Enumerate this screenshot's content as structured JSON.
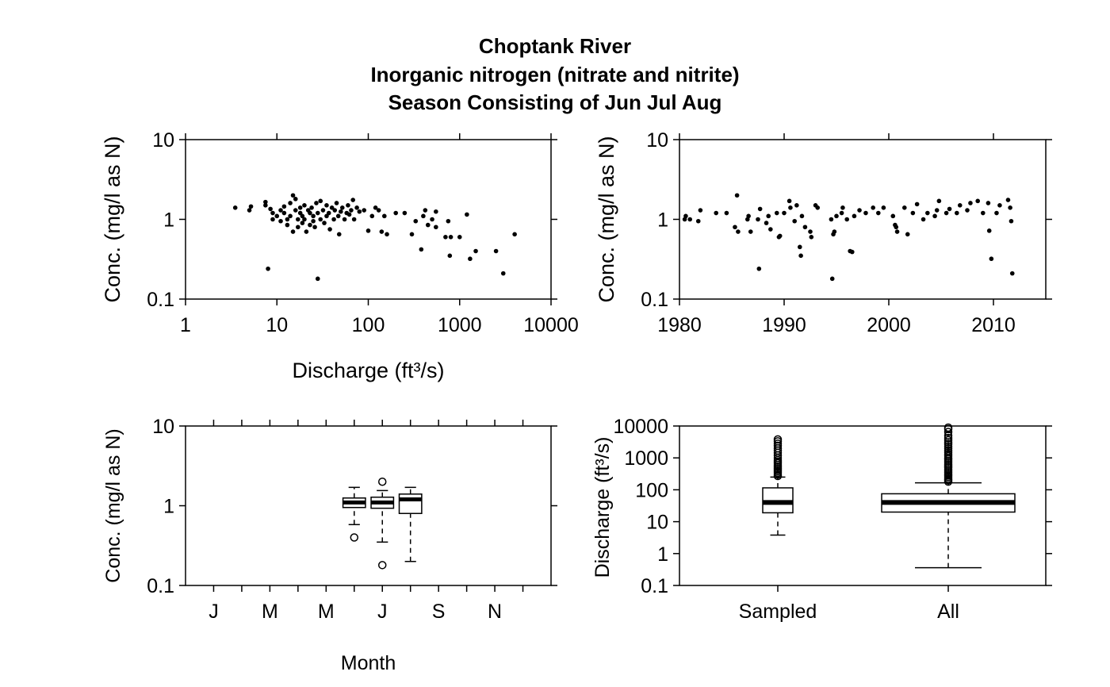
{
  "figure": {
    "title_lines": [
      "Choptank River",
      "Inorganic nitrogen (nitrate and nitrite)",
      "Season Consisting of Jun Jul Aug"
    ]
  },
  "chart_data": [
    {
      "id": "conc-vs-discharge",
      "type": "scatter",
      "xlabel": "Discharge (ft³/s)",
      "ylabel": "Conc. (mg/l as N)",
      "x_scale": "log",
      "y_scale": "log",
      "xlim": [
        1,
        10000
      ],
      "ylim": [
        0.1,
        10
      ],
      "x_ticks": [
        "1",
        "10",
        "100",
        "1000",
        "10000"
      ],
      "y_ticks": [
        "0.1",
        "1",
        "10"
      ],
      "points": [
        [
          3.5,
          1.4
        ],
        [
          5,
          1.3
        ],
        [
          5.2,
          1.45
        ],
        [
          7.5,
          1.5
        ],
        [
          7.5,
          1.65
        ],
        [
          8,
          0.24
        ],
        [
          8.5,
          1.35
        ],
        [
          9,
          1.0
        ],
        [
          9,
          1.2
        ],
        [
          10,
          1.1
        ],
        [
          11,
          1.3
        ],
        [
          11,
          0.95
        ],
        [
          12,
          1.45
        ],
        [
          12,
          1.2
        ],
        [
          13,
          1.0
        ],
        [
          13,
          0.85
        ],
        [
          14,
          1.6
        ],
        [
          14,
          1.1
        ],
        [
          15,
          2.0
        ],
        [
          15,
          0.7
        ],
        [
          16,
          1.3
        ],
        [
          16,
          1.8
        ],
        [
          17,
          1.0
        ],
        [
          17,
          0.8
        ],
        [
          18,
          1.4
        ],
        [
          18,
          1.2
        ],
        [
          19,
          1.1
        ],
        [
          19,
          0.9
        ],
        [
          20,
          1.5
        ],
        [
          20,
          1.0
        ],
        [
          21,
          0.7
        ],
        [
          22,
          1.3
        ],
        [
          23,
          0.85
        ],
        [
          23,
          1.2
        ],
        [
          24,
          1.4
        ],
        [
          25,
          1.1
        ],
        [
          25,
          0.95
        ],
        [
          26,
          0.8
        ],
        [
          27,
          1.6
        ],
        [
          28,
          1.2
        ],
        [
          28,
          0.18
        ],
        [
          30,
          1.7
        ],
        [
          30,
          1.0
        ],
        [
          32,
          1.3
        ],
        [
          33,
          0.9
        ],
        [
          35,
          1.5
        ],
        [
          35,
          1.1
        ],
        [
          37,
          1.2
        ],
        [
          38,
          0.75
        ],
        [
          40,
          1.4
        ],
        [
          42,
          1.0
        ],
        [
          43,
          1.3
        ],
        [
          45,
          1.6
        ],
        [
          47,
          1.1
        ],
        [
          48,
          0.65
        ],
        [
          50,
          1.25
        ],
        [
          52,
          1.4
        ],
        [
          55,
          1.0
        ],
        [
          58,
          1.2
        ],
        [
          60,
          1.5
        ],
        [
          62,
          1.15
        ],
        [
          65,
          1.3
        ],
        [
          68,
          1.75
        ],
        [
          70,
          1.0
        ],
        [
          75,
          1.4
        ],
        [
          80,
          1.25
        ],
        [
          90,
          1.3
        ],
        [
          100,
          0.72
        ],
        [
          110,
          1.1
        ],
        [
          120,
          1.4
        ],
        [
          130,
          1.3
        ],
        [
          140,
          0.7
        ],
        [
          150,
          1.1
        ],
        [
          160,
          0.65
        ],
        [
          200,
          1.2
        ],
        [
          250,
          1.2
        ],
        [
          300,
          0.65
        ],
        [
          330,
          0.95
        ],
        [
          380,
          0.42
        ],
        [
          400,
          1.1
        ],
        [
          420,
          1.3
        ],
        [
          450,
          0.85
        ],
        [
          500,
          1.0
        ],
        [
          550,
          1.25
        ],
        [
          550,
          0.8
        ],
        [
          700,
          0.6
        ],
        [
          750,
          0.95
        ],
        [
          780,
          0.35
        ],
        [
          800,
          0.6
        ],
        [
          1000,
          0.6
        ],
        [
          1200,
          1.15
        ],
        [
          1300,
          0.32
        ],
        [
          1500,
          0.4
        ],
        [
          2500,
          0.4
        ],
        [
          3000,
          0.21
        ],
        [
          4000,
          0.65
        ]
      ]
    },
    {
      "id": "conc-vs-time",
      "type": "scatter",
      "xlabel": "",
      "ylabel": "Conc. (mg/l as N)",
      "y_scale": "log",
      "xlim": [
        1980,
        2015
      ],
      "ylim": [
        0.1,
        10
      ],
      "x_ticks": [
        "1980",
        "1990",
        "2000",
        "2010"
      ],
      "y_ticks": [
        "0.1",
        "1",
        "10"
      ],
      "points": [
        [
          1980.5,
          1.0
        ],
        [
          1980.6,
          1.1
        ],
        [
          1981,
          1.0
        ],
        [
          1981.8,
          0.95
        ],
        [
          1982,
          1.3
        ],
        [
          1983.5,
          1.2
        ],
        [
          1984.5,
          1.2
        ],
        [
          1985.3,
          0.8
        ],
        [
          1985.5,
          2.0
        ],
        [
          1985.6,
          0.7
        ],
        [
          1986.5,
          1.0
        ],
        [
          1986.6,
          1.1
        ],
        [
          1986.8,
          0.7
        ],
        [
          1987.5,
          1.0
        ],
        [
          1987.7,
          1.35
        ],
        [
          1987.6,
          0.24
        ],
        [
          1988.3,
          0.9
        ],
        [
          1988.5,
          1.1
        ],
        [
          1988.7,
          0.75
        ],
        [
          1989.3,
          1.2
        ],
        [
          1989.5,
          0.6
        ],
        [
          1989.6,
          0.62
        ],
        [
          1990,
          1.2
        ],
        [
          1990.5,
          1.7
        ],
        [
          1990.6,
          1.4
        ],
        [
          1991,
          0.95
        ],
        [
          1991.2,
          1.5
        ],
        [
          1991.5,
          0.45
        ],
        [
          1991.6,
          0.35
        ],
        [
          1991.7,
          1.1
        ],
        [
          1992,
          0.8
        ],
        [
          1992.5,
          0.7
        ],
        [
          1992.6,
          0.6
        ],
        [
          1993,
          1.5
        ],
        [
          1993.2,
          1.4
        ],
        [
          1994.5,
          1.0
        ],
        [
          1994.6,
          0.18
        ],
        [
          1994.7,
          0.65
        ],
        [
          1994.8,
          0.7
        ],
        [
          1995,
          1.1
        ],
        [
          1995.5,
          1.2
        ],
        [
          1995.6,
          1.4
        ],
        [
          1996,
          1.0
        ],
        [
          1996.3,
          0.4
        ],
        [
          1996.5,
          0.39
        ],
        [
          1996.7,
          1.1
        ],
        [
          1997.2,
          1.3
        ],
        [
          1997.8,
          1.2
        ],
        [
          1998.5,
          1.4
        ],
        [
          1999,
          1.2
        ],
        [
          1999.5,
          1.4
        ],
        [
          2000.4,
          1.1
        ],
        [
          2000.6,
          0.85
        ],
        [
          2000.7,
          0.8
        ],
        [
          2000.8,
          0.7
        ],
        [
          2001.5,
          1.4
        ],
        [
          2001.8,
          0.65
        ],
        [
          2002.3,
          1.2
        ],
        [
          2002.7,
          1.55
        ],
        [
          2003.3,
          1.0
        ],
        [
          2003.7,
          1.2
        ],
        [
          2004.4,
          1.1
        ],
        [
          2004.6,
          1.3
        ],
        [
          2004.8,
          1.7
        ],
        [
          2005.5,
          1.2
        ],
        [
          2005.8,
          1.35
        ],
        [
          2006.5,
          1.2
        ],
        [
          2006.8,
          1.5
        ],
        [
          2007.5,
          1.3
        ],
        [
          2007.8,
          1.6
        ],
        [
          2008.5,
          1.7
        ],
        [
          2009,
          1.2
        ],
        [
          2009.5,
          1.6
        ],
        [
          2009.6,
          0.72
        ],
        [
          2009.8,
          0.32
        ],
        [
          2010.3,
          1.2
        ],
        [
          2010.6,
          1.5
        ],
        [
          2011.4,
          1.75
        ],
        [
          2011.6,
          1.4
        ],
        [
          2011.7,
          0.95
        ],
        [
          2011.8,
          0.21
        ]
      ]
    },
    {
      "id": "conc-by-month",
      "type": "box",
      "xlabel": "Month",
      "ylabel": "Conc. (mg/l as N)",
      "y_scale": "log",
      "ylim": [
        0.1,
        10
      ],
      "month_tick_labels": [
        "J",
        "M",
        "M",
        "J",
        "S",
        "N"
      ],
      "y_ticks": [
        "0.1",
        "1",
        "10"
      ],
      "boxes": [
        {
          "month": 6,
          "whisker_low": 0.58,
          "q1": 0.95,
          "median": 1.1,
          "q3": 1.25,
          "whisker_high": 1.7,
          "outliers": [
            0.4
          ]
        },
        {
          "month": 7,
          "whisker_low": 0.35,
          "q1": 0.93,
          "median": 1.1,
          "q3": 1.28,
          "whisker_high": 1.55,
          "outliers": [
            0.18,
            2.0
          ]
        },
        {
          "month": 8,
          "whisker_low": 0.2,
          "q1": 0.8,
          "median": 1.2,
          "q3": 1.4,
          "whisker_high": 1.7,
          "outliers": []
        }
      ]
    },
    {
      "id": "discharge-boxplot",
      "type": "box",
      "xlabel": "",
      "ylabel": "Discharge (ft³/s)",
      "y_scale": "log",
      "ylim": [
        0.1,
        10000
      ],
      "y_ticks": [
        "0.1",
        "1",
        "10",
        "100",
        "1000",
        "10000"
      ],
      "categories": [
        "Sampled",
        "All"
      ],
      "boxes": [
        {
          "name": "Sampled",
          "whisker_low": 3.8,
          "q1": 19,
          "median": 40,
          "q3": 115,
          "whisker_high": 250,
          "outliers": [
            270,
            300,
            340,
            380,
            420,
            470,
            530,
            600,
            680,
            760,
            850,
            1000,
            1200,
            1450,
            1700,
            2000,
            2400,
            2800,
            3300,
            3800
          ]
        },
        {
          "name": "All",
          "whisker_low": 0.36,
          "q1": 20,
          "median": 40,
          "q3": 75,
          "whisker_high": 165,
          "outliers": [
            180,
            200,
            220,
            250,
            280,
            310,
            350,
            390,
            440,
            500,
            560,
            630,
            710,
            800,
            900,
            1000,
            1150,
            1300,
            1500,
            1700,
            2000,
            2300,
            2700,
            3100,
            3600,
            4200,
            5000,
            6500,
            8000,
            9500
          ]
        }
      ]
    }
  ]
}
